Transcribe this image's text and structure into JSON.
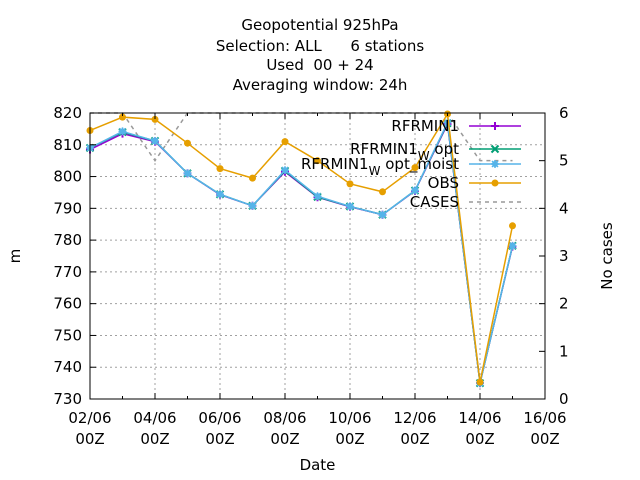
{
  "chart_data": {
    "type": "line",
    "title_lines": [
      "Geopotential 925hPa",
      "Selection: ALL      6 stations",
      "Used  00 + 24",
      "Averaging window: 24h"
    ],
    "xlabel": "Date",
    "ylabel": "m",
    "y2label": "No cases",
    "xlim": [
      "2022-06-02",
      "2022-06-16"
    ],
    "ylim": [
      730,
      820
    ],
    "y2lim": [
      0,
      6
    ],
    "x_ticks": [
      {
        "value": "2022-06-02",
        "line1": "02/06",
        "line2": "00Z"
      },
      {
        "value": "2022-06-04",
        "line1": "04/06",
        "line2": "00Z"
      },
      {
        "value": "2022-06-06",
        "line1": "06/06",
        "line2": "00Z"
      },
      {
        "value": "2022-06-08",
        "line1": "08/06",
        "line2": "00Z"
      },
      {
        "value": "2022-06-10",
        "line1": "10/06",
        "line2": "00Z"
      },
      {
        "value": "2022-06-12",
        "line1": "12/06",
        "line2": "00Z"
      },
      {
        "value": "2022-06-14",
        "line1": "14/06",
        "line2": "00Z"
      },
      {
        "value": "2022-06-16",
        "line1": "16/06",
        "line2": "00Z"
      }
    ],
    "y_ticks": [
      "730",
      "740",
      "750",
      "760",
      "770",
      "780",
      "790",
      "800",
      "810",
      "820"
    ],
    "y2_ticks": [
      "0",
      "1",
      "2",
      "3",
      "4",
      "5",
      "6"
    ],
    "grid": true,
    "legend_position": "top-right",
    "x": [
      "2022-06-02",
      "2022-06-03",
      "2022-06-04",
      "2022-06-05",
      "2022-06-06",
      "2022-06-07",
      "2022-06-08",
      "2022-06-09",
      "2022-06-10",
      "2022-06-11",
      "2022-06-12",
      "2022-06-13",
      "2022-06-14",
      "2022-06-15"
    ],
    "series": [
      {
        "name": "RFRMIN1",
        "name_sub": "",
        "name_tail": "",
        "color": "#9400d3",
        "marker": "plus",
        "axis": "y",
        "values": [
          808.5,
          813.5,
          811.0,
          801.0,
          794.3,
          790.8,
          801.5,
          793.5,
          790.5,
          788.0,
          795.5,
          816.5,
          735.0,
          778.0
        ]
      },
      {
        "name": "RFRMIN1",
        "name_sub": "W",
        "name_tail": "opt",
        "color": "#009e73",
        "marker": "x",
        "axis": "y",
        "values": [
          809.0,
          814.0,
          811.2,
          801.0,
          794.4,
          790.8,
          801.8,
          793.6,
          790.6,
          788.0,
          795.6,
          816.8,
          735.0,
          778.2
        ]
      },
      {
        "name": "RFRMIN1",
        "name_sub": "W",
        "name_tail": "opt_moist",
        "color": "#56b4e9",
        "marker": "star",
        "axis": "y",
        "values": [
          809.0,
          814.2,
          811.2,
          801.0,
          794.4,
          790.8,
          802.0,
          793.8,
          790.6,
          788.0,
          795.6,
          817.0,
          735.0,
          778.2
        ]
      },
      {
        "name": "OBS",
        "name_sub": "",
        "name_tail": "",
        "color": "#e69f00",
        "marker": "circle",
        "axis": "y",
        "values": [
          814.5,
          818.7,
          818.0,
          810.5,
          802.5,
          799.5,
          811.0,
          805.0,
          797.7,
          795.2,
          802.8,
          819.7,
          735.3,
          784.5
        ]
      },
      {
        "name": "CASES",
        "name_sub": "",
        "name_tail": "",
        "color": "#999999",
        "marker": "none",
        "axis": "y2",
        "dashed": true,
        "values": [
          6,
          6,
          5,
          6,
          6,
          6,
          6,
          6,
          6,
          6,
          6,
          6,
          5,
          5
        ]
      }
    ]
  }
}
